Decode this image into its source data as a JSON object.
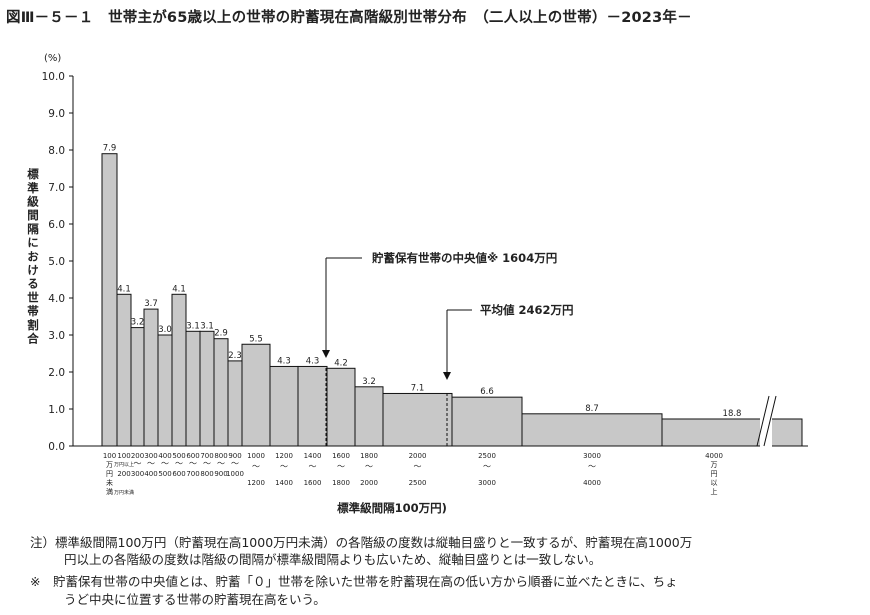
{
  "title": "図Ⅲ－５－１　世帯主が65歳以上の世帯の貯蓄現在高階級別世帯分布　（二人以上の世帯）－2023年－",
  "chart_data": {
    "type": "bar",
    "title": "図Ⅲ－５－１　世帯主が65歳以上の世帯の貯蓄現在高階級別世帯分布　（二人以上の世帯）－2023年－",
    "ylabel": "標準級間隔における世帯割合",
    "y_unit": "(%)",
    "xlabel": "標準級間隔100万円)",
    "ylim": [
      0,
      10
    ],
    "yticks": [
      "0.0",
      "1.0",
      "2.0",
      "3.0",
      "4.0",
      "5.0",
      "6.0",
      "7.0",
      "8.0",
      "9.0",
      "10.0"
    ],
    "grid": false,
    "bars": [
      {
        "label": "7.9",
        "height": 7.9,
        "from": 0,
        "to": 100
      },
      {
        "label": "4.1",
        "height": 4.1,
        "from": 100,
        "to": 200
      },
      {
        "label": "3.2",
        "height": 3.2,
        "from": 200,
        "to": 300
      },
      {
        "label": "3.7",
        "height": 3.7,
        "from": 300,
        "to": 400
      },
      {
        "label": "3.0",
        "height": 3.0,
        "from": 400,
        "to": 500
      },
      {
        "label": "4.1",
        "height": 4.1,
        "from": 500,
        "to": 600
      },
      {
        "label": "3.1",
        "height": 3.1,
        "from": 600,
        "to": 700
      },
      {
        "label": "3.1",
        "height": 3.1,
        "from": 700,
        "to": 800
      },
      {
        "label": "2.9",
        "height": 2.9,
        "from": 800,
        "to": 900
      },
      {
        "label": "2.3",
        "height": 2.3,
        "from": 900,
        "to": 1000
      },
      {
        "label": "5.5",
        "height": 2.75,
        "from": 1000,
        "to": 1200
      },
      {
        "label": "4.3",
        "height": 2.15,
        "from": 1200,
        "to": 1400
      },
      {
        "label": "4.3",
        "height": 2.15,
        "from": 1400,
        "to": 1600
      },
      {
        "label": "4.2",
        "height": 2.1,
        "from": 1600,
        "to": 1800
      },
      {
        "label": "3.2",
        "height": 1.6,
        "from": 1800,
        "to": 2000
      },
      {
        "label": "7.1",
        "height": 1.42,
        "from": 2000,
        "to": 2500
      },
      {
        "label": "6.6",
        "height": 1.32,
        "from": 2500,
        "to": 3000
      },
      {
        "label": "8.7",
        "height": 0.87,
        "from": 3000,
        "to": 4000
      },
      {
        "label": "18.8",
        "height": 0.73,
        "from": 4000,
        "to": null
      }
    ],
    "x_tick_labels": [
      {
        "top": "100",
        "mid": "万円",
        "bottom": "未満"
      },
      {
        "top": "100",
        "mid": "万円以上",
        "bottom": "200"
      },
      {
        "top": "200",
        "mid": "～",
        "bottom": "300"
      },
      {
        "top": "300",
        "mid": "～",
        "bottom": "400"
      },
      {
        "top": "400",
        "mid": "～",
        "bottom": "500"
      },
      {
        "top": "500",
        "mid": "～",
        "bottom": "600"
      },
      {
        "top": "600",
        "mid": "～",
        "bottom": "700"
      },
      {
        "top": "700",
        "mid": "～",
        "bottom": "800"
      },
      {
        "top": "800",
        "mid": "～",
        "bottom": "900"
      },
      {
        "top": "900",
        "mid": "～",
        "bottom": "1000"
      },
      {
        "top": "1000",
        "mid": "～",
        "bottom": "1200"
      },
      {
        "top": "1200",
        "mid": "～",
        "bottom": "1400"
      },
      {
        "top": "1400",
        "mid": "～",
        "bottom": "1600"
      },
      {
        "top": "1600",
        "mid": "～",
        "bottom": "1800"
      },
      {
        "top": "1800",
        "mid": "～",
        "bottom": "2000"
      },
      {
        "top": "2000",
        "mid": "～",
        "bottom": "2500"
      },
      {
        "top": "2500",
        "mid": "～",
        "bottom": "3000"
      },
      {
        "top": "3000",
        "mid": "～",
        "bottom": "4000"
      },
      {
        "top": "4000",
        "mid": "万円",
        "bottom": "以上"
      }
    ],
    "extra_x_label": "万円未満",
    "annotations": [
      {
        "name": "median",
        "text": "貯蓄保有世帯の中央値※ 1604万円",
        "value": 1604
      },
      {
        "name": "mean",
        "text": "平均値 2462万円",
        "value": 2462
      }
    ]
  },
  "notes": {
    "note1_line1": "注）標準級間隔100万円（貯蓄現在高1000万円未満）の各階級の度数は縦軸目盛りと一致するが、貯蓄現在高1000万",
    "note1_line2": "円以上の各階級の度数は階級の間隔が標準級間隔よりも広いため、縦軸目盛りとは一致しない。",
    "note2_line1": "※　貯蓄保有世帯の中央値とは、貯蓄「０」世帯を除いた世帯を貯蓄現在高の低い方から順番に並べたときに、ちょ",
    "note2_line2": "うど中央に位置する世帯の貯蓄現在高をいう。"
  },
  "colors": {
    "bar_fill": "#c8c8c8",
    "bar_stroke": "#111111",
    "text": "#222222"
  }
}
